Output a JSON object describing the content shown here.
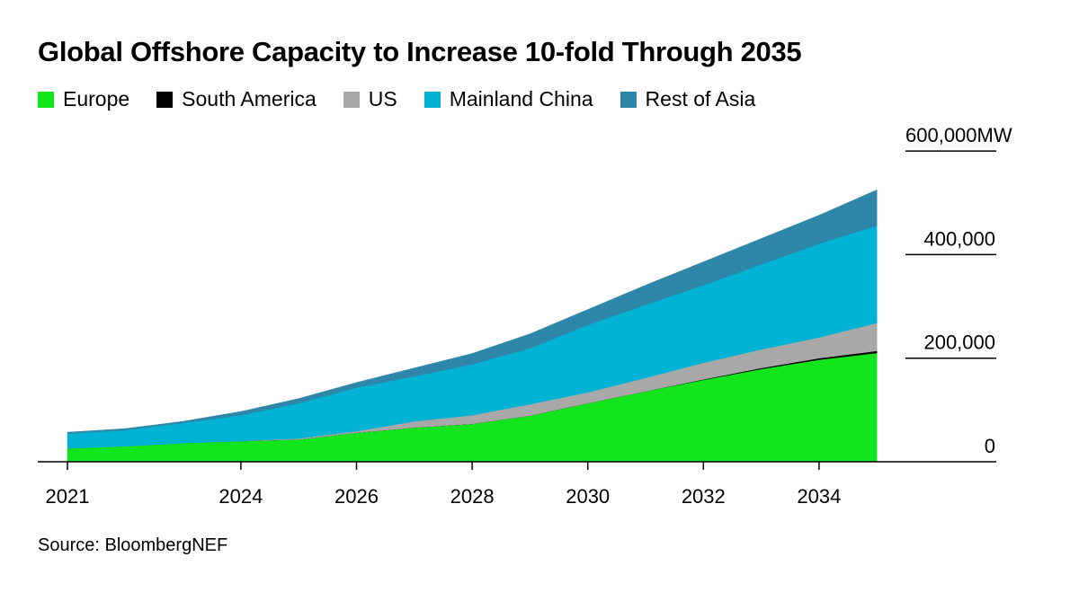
{
  "chart_data": {
    "type": "area",
    "stacked": true,
    "title": "Global Offshore Capacity to Increase 10-fold Through 2035",
    "source": "Source: BloombergNEF",
    "x": [
      2021,
      2022,
      2023,
      2024,
      2025,
      2026,
      2027,
      2028,
      2029,
      2030,
      2031,
      2032,
      2033,
      2034,
      2035
    ],
    "x_ticks": [
      "2021",
      "2024",
      "2026",
      "2028",
      "2030",
      "2032",
      "2034"
    ],
    "x_tick_values": [
      2021,
      2024,
      2026,
      2028,
      2030,
      2032,
      2034
    ],
    "y_ticks": [
      "0",
      "200,000",
      "400,000",
      "600,000"
    ],
    "y_tick_values": [
      0,
      200000,
      400000,
      600000
    ],
    "y_unit": "MW",
    "ylim": [
      0,
      600000
    ],
    "legend_placement": "top-left",
    "series": [
      {
        "name": "Europe",
        "color": "#13e51c",
        "values": [
          26000,
          30000,
          36000,
          40000,
          43000,
          56000,
          66000,
          73000,
          89000,
          113000,
          136000,
          158000,
          179000,
          197000,
          210000
        ]
      },
      {
        "name": "South America",
        "color": "#000000",
        "values": [
          0,
          0,
          0,
          0,
          0,
          0,
          0,
          0,
          0,
          0,
          0,
          1000,
          2000,
          3000,
          4000
        ]
      },
      {
        "name": "US",
        "color": "#a8a8a8",
        "values": [
          0,
          0,
          0,
          0,
          2000,
          3000,
          12000,
          17000,
          22000,
          21000,
          26000,
          32000,
          36000,
          40000,
          54000
        ]
      },
      {
        "name": "Mainland China",
        "color": "#00b2d3",
        "values": [
          28000,
          31000,
          39000,
          50000,
          68000,
          84000,
          87000,
          98000,
          108000,
          130000,
          141000,
          150000,
          164000,
          181000,
          188000
        ]
      },
      {
        "name": "Rest of Asia",
        "color": "#2e86a8",
        "values": [
          3000,
          3000,
          3000,
          7000,
          9000,
          10000,
          16000,
          21000,
          28000,
          30000,
          38000,
          45000,
          50000,
          55000,
          69000
        ]
      }
    ]
  }
}
